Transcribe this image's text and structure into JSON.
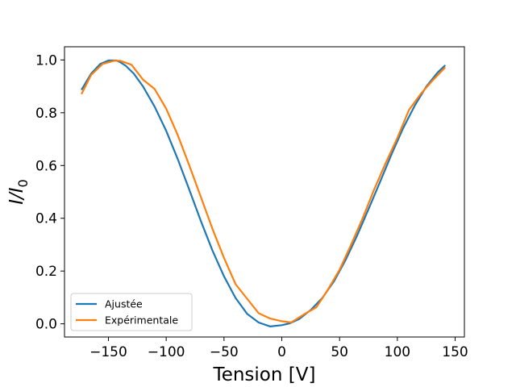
{
  "chart_data": {
    "type": "line",
    "title": "",
    "xlabel": "Tension [V]",
    "ylabel": "I/I_0",
    "xlim": [
      -188,
      158
    ],
    "ylim": [
      -0.05,
      1.05
    ],
    "xticks": [
      -150,
      -100,
      -50,
      0,
      50,
      100,
      150
    ],
    "xtick_labels": [
      "−150",
      "−100",
      "−50",
      "0",
      "50",
      "100",
      "150"
    ],
    "yticks": [
      0.0,
      0.2,
      0.4,
      0.6,
      0.8,
      1.0
    ],
    "ytick_labels": [
      "0.0",
      "0.2",
      "0.4",
      "0.6",
      "0.8",
      "1.0"
    ],
    "grid": false,
    "legend_position": "lower-left",
    "series": [
      {
        "name": "Ajustée",
        "color": "#1f77b4",
        "x": [
          -173,
          -165,
          -157,
          -150,
          -143,
          -140,
          -135,
          -128,
          -120,
          -110,
          -100,
          -90,
          -80,
          -70,
          -60,
          -50,
          -40,
          -30,
          -20,
          -10,
          0,
          7,
          15,
          25,
          35,
          45,
          55,
          65,
          75,
          85,
          95,
          105,
          115,
          125,
          135,
          141
        ],
        "y": [
          0.889,
          0.948,
          0.985,
          0.998,
          0.998,
          0.992,
          0.978,
          0.948,
          0.899,
          0.823,
          0.731,
          0.624,
          0.508,
          0.389,
          0.278,
          0.18,
          0.098,
          0.038,
          0.005,
          -0.01,
          -0.005,
          0.002,
          0.018,
          0.052,
          0.098,
          0.16,
          0.24,
          0.333,
          0.434,
          0.538,
          0.643,
          0.741,
          0.827,
          0.899,
          0.953,
          0.978
        ]
      },
      {
        "name": "Expérimentale",
        "color": "#ff7f0e",
        "x": [
          -173,
          -165,
          -155,
          -145,
          -140,
          -130,
          -120,
          -110,
          -100,
          -90,
          -80,
          -70,
          -60,
          -50,
          -40,
          -30,
          -20,
          -10,
          0,
          8,
          20,
          30,
          40,
          50,
          60,
          70,
          80,
          90,
          100,
          110,
          120,
          130,
          141
        ],
        "y": [
          0.873,
          0.943,
          0.985,
          0.997,
          0.997,
          0.982,
          0.925,
          0.89,
          0.815,
          0.715,
          0.6,
          0.48,
          0.36,
          0.25,
          0.15,
          0.095,
          0.04,
          0.02,
          0.01,
          0.005,
          0.038,
          0.063,
          0.13,
          0.205,
          0.3,
          0.4,
          0.51,
          0.61,
          0.705,
          0.81,
          0.87,
          0.92,
          0.97
        ]
      }
    ]
  }
}
